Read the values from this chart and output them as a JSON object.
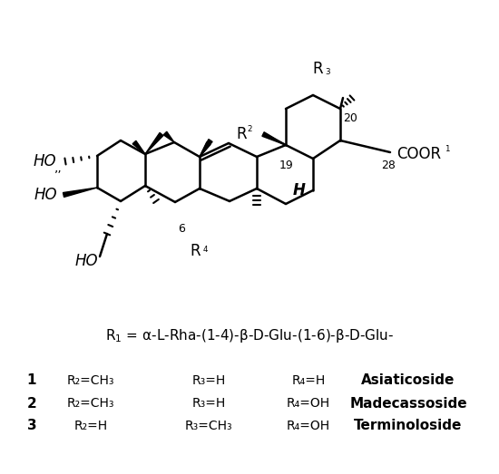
{
  "title": "",
  "background_color": "#ffffff",
  "r1_label": "R₁ = α-L-Rha-(1-4)-O-β-D-Glu-(1-6)-O-β-D-Glu-",
  "compounds": [
    {
      "num": "1",
      "r2": "R₂=CH₃",
      "r3": "R₃=H",
      "r4": "R₄=H",
      "name": "Asiaticoside"
    },
    {
      "num": "2",
      "r2": "R₂=CH₃",
      "r3": "R₃=H",
      "r4": "R₄=OH",
      "name": "Madecassoside"
    },
    {
      "num": "3",
      "r2": "R₂=H",
      "r3": "R₃=CH₃",
      "r4": "R₄=OH",
      "name": "Terminoloside"
    }
  ],
  "figsize": [
    5.5,
    5.23
  ],
  "dpi": 100
}
